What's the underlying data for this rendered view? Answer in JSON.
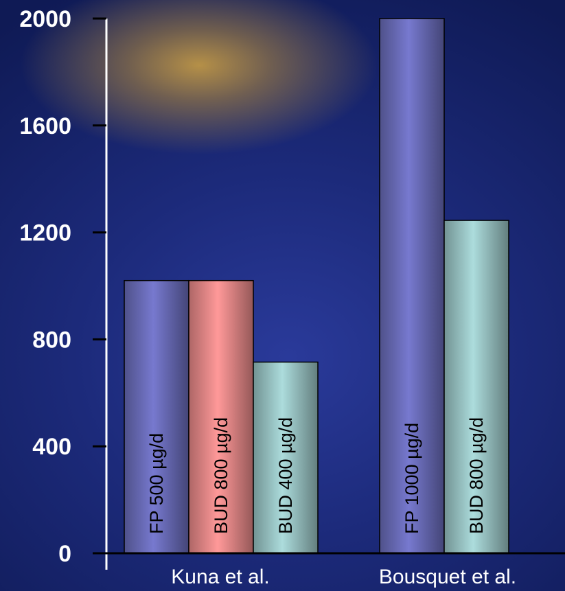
{
  "chart_data": {
    "type": "bar",
    "ylim": [
      0,
      2000
    ],
    "yticks": [
      0,
      400,
      800,
      1200,
      1600,
      2000
    ],
    "groups": [
      {
        "category": "Kuna et al.",
        "bars": [
          {
            "label": "FP 500 µg/d",
            "value": 1020,
            "color": "#6e70c0"
          },
          {
            "label": "BUD 800 µg/d",
            "value": 1020,
            "color": "#f08e8e"
          },
          {
            "label": "BUD 400 µg/d",
            "value": 715,
            "color": "#9fcccc"
          }
        ]
      },
      {
        "category": "Bousquet et al.",
        "bars": [
          {
            "label": "FP 1000 µg/d",
            "value": 2000,
            "color": "#6e70c0"
          },
          {
            "label": "BUD 800 µg/d",
            "value": 1245,
            "color": "#9fcccc"
          }
        ]
      }
    ],
    "grid": false,
    "legend": "none"
  }
}
